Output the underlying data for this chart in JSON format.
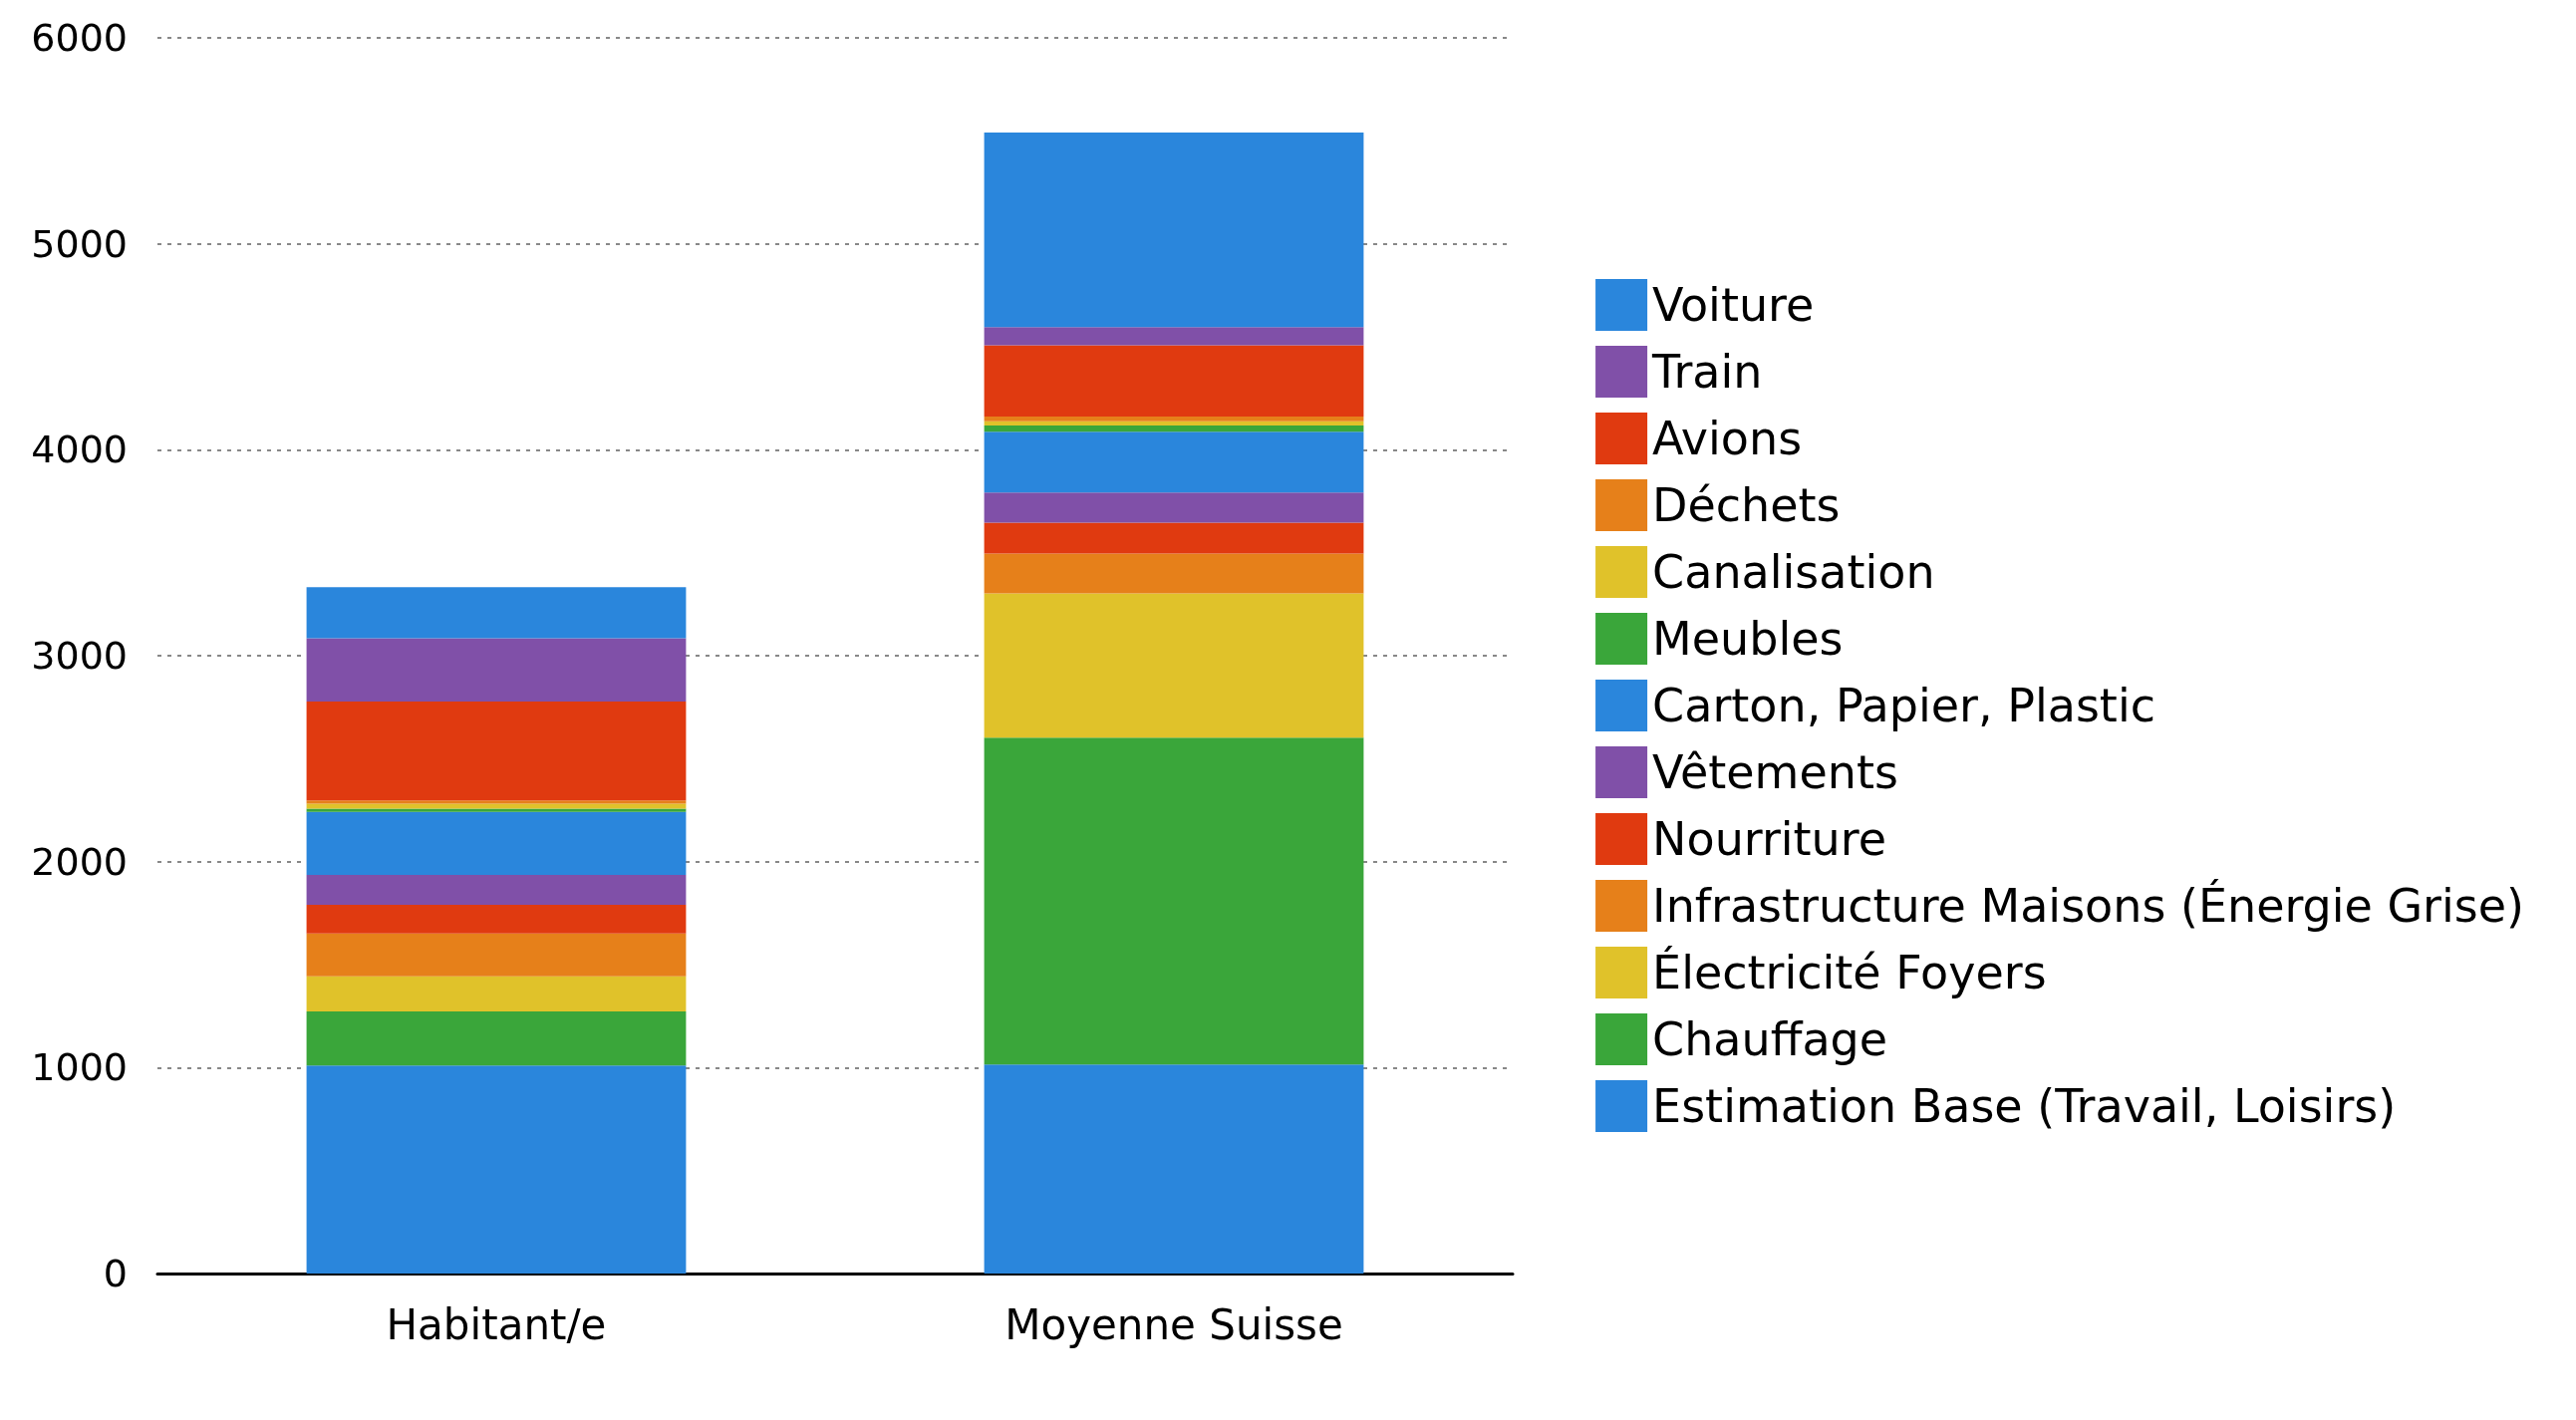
{
  "chart_data": {
    "type": "bar",
    "stacked": true,
    "categories": [
      "Habitant/e",
      "Moyenne Suisse"
    ],
    "series": [
      {
        "name": "Estimation Base (Travail, Loisirs)",
        "color": "#2a86dc",
        "values": [
          1010,
          1015
        ]
      },
      {
        "name": "Chauffage",
        "color": "#3aa63a",
        "values": [
          263,
          1587
        ]
      },
      {
        "name": "Électricité Foyers",
        "color": "#e0c22a",
        "values": [
          170,
          701
        ]
      },
      {
        "name": "Infrastructure Maisons (Énergie Grise)",
        "color": "#e6801a",
        "values": [
          208,
          193
        ]
      },
      {
        "name": "Nourriture",
        "color": "#e03a10",
        "values": [
          139,
          150
        ]
      },
      {
        "name": "Vêtements",
        "color": "#8050a8",
        "values": [
          145,
          146
        ]
      },
      {
        "name": "Carton, Papier, Plastic",
        "color": "#2a86dc",
        "values": [
          307,
          296
        ]
      },
      {
        "name": "Meubles",
        "color": "#3aa63a",
        "values": [
          15,
          30
        ]
      },
      {
        "name": "Canalisation",
        "color": "#e0c22a",
        "values": [
          25,
          20
        ]
      },
      {
        "name": "Déchets",
        "color": "#e6801a",
        "values": [
          15,
          23
        ]
      },
      {
        "name": "Avions",
        "color": "#e03a10",
        "values": [
          481,
          346
        ]
      },
      {
        "name": "Train",
        "color": "#8050a8",
        "values": [
          307,
          88
        ]
      },
      {
        "name": "Voiture",
        "color": "#2a86dc",
        "values": [
          248,
          945
        ]
      }
    ],
    "ylim": [
      0,
      6000
    ],
    "yticks": [
      0,
      1000,
      2000,
      3000,
      4000,
      5000,
      6000
    ],
    "grid": "y",
    "legend": "right"
  }
}
